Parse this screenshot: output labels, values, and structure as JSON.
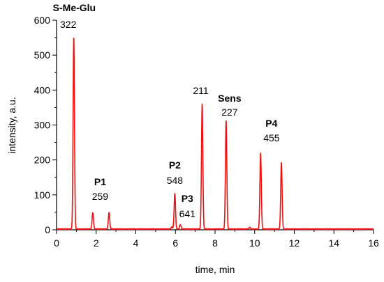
{
  "chart_data": {
    "type": "line",
    "xlabel": "time, min",
    "ylabel": "intensity, a.u.",
    "xlim": [
      0,
      16
    ],
    "ylim": [
      0,
      600
    ],
    "x_ticks": [
      0,
      2,
      4,
      6,
      8,
      10,
      12,
      14,
      16
    ],
    "y_ticks": [
      0,
      100,
      200,
      300,
      400,
      500,
      600
    ],
    "grid": false,
    "series": [
      {
        "color": "#ee1111",
        "peaks": [
          {
            "x": 0.87,
            "y": 553
          },
          {
            "x": 1.83,
            "y": 47
          },
          {
            "x": 2.65,
            "y": 48
          },
          {
            "x": 5.82,
            "y": 6
          },
          {
            "x": 5.97,
            "y": 102
          },
          {
            "x": 6.25,
            "y": 13
          },
          {
            "x": 7.35,
            "y": 358
          },
          {
            "x": 8.56,
            "y": 311
          },
          {
            "x": 9.75,
            "y": 5
          },
          {
            "x": 10.3,
            "y": 218
          },
          {
            "x": 11.35,
            "y": 191
          }
        ]
      }
    ],
    "annotations": [
      {
        "name": "S-Me-Glu",
        "mass": "322",
        "x": 0.87
      },
      {
        "name": "P1",
        "mass": "259",
        "x": 2.2
      },
      {
        "name": "P2",
        "mass": "548",
        "x": 5.97
      },
      {
        "name": "P3",
        "mass": "641",
        "x": 6.6
      },
      {
        "name": "",
        "mass": "211",
        "x": 7.35
      },
      {
        "name": "Sens",
        "mass": "227",
        "x": 8.56
      },
      {
        "name": "P4",
        "mass": "455",
        "x": 10.85
      }
    ]
  }
}
